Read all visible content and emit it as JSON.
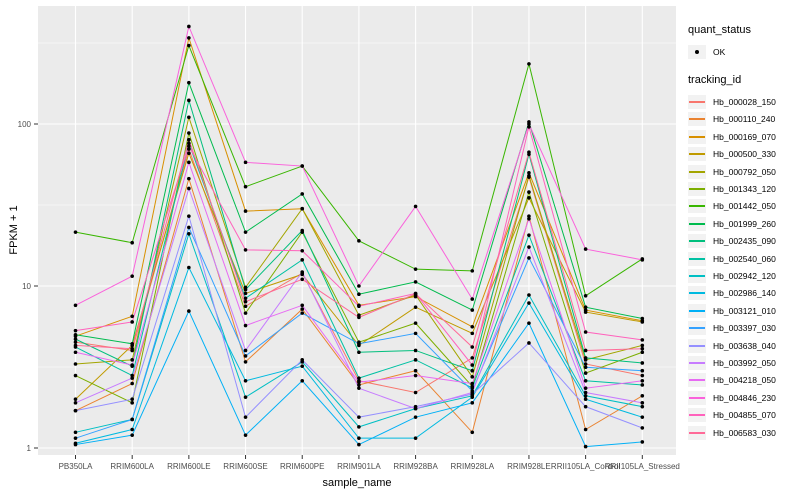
{
  "style": {
    "background": "#FFFFFF",
    "panel_fill": "#EBEBEB",
    "grid_color": "#FFFFFF",
    "legend_key_fill": "#F2F2F2",
    "tick_label_color": "#4D4D4D",
    "tick_mark_color": "#333333",
    "point_color": "#000000"
  },
  "legend": {
    "quant_status_title": "quant_status",
    "quant_status_items": [
      {
        "label": "OK",
        "marker": "point"
      }
    ],
    "tracking_id_title": "tracking_id"
  },
  "chart_data": {
    "type": "line",
    "title": "",
    "xlabel": "sample_name",
    "ylabel": "FPKM + 1",
    "y_scale": "log10",
    "y_ticks": [
      1,
      10,
      100
    ],
    "y_minor_ticks": [
      3.1623,
      31.623,
      316.23
    ],
    "ylim_log": [
      0.957,
      2.73
    ],
    "grid": "on",
    "legend_position": "right",
    "marker": "black-point",
    "categories": [
      "PB350LA",
      "RRIM600LA",
      "RRIM600LE",
      "RRIM600SE",
      "RRIM600PE",
      "RRIM901LA",
      "RRIM928BA",
      "RRIM928LA",
      "RRIM928LE",
      "RRII105LA_Control",
      "RRII105LA_Stressed"
    ],
    "series": [
      {
        "name": "Hb_000028_150",
        "color": "#F8766D",
        "values": [
          4.5,
          4.0,
          70,
          7.5,
          12.0,
          2.6,
          2.2,
          3.6,
          47,
          3.3,
          2.8
        ]
      },
      {
        "name": "Hb_000110_240",
        "color": "#EA8331",
        "values": [
          1.7,
          2.5,
          46,
          3.4,
          7.2,
          2.45,
          3.0,
          1.25,
          27,
          1.3,
          2.1
        ]
      },
      {
        "name": "Hb_000169_070",
        "color": "#D89000",
        "values": [
          4.9,
          6.5,
          340,
          29,
          30,
          7.6,
          8.6,
          5.6,
          50,
          7.1,
          6.1
        ]
      },
      {
        "name": "Hb_000500_330",
        "color": "#C09B00",
        "values": [
          2.0,
          4.3,
          66,
          9.0,
          11.8,
          4.3,
          7.4,
          5.1,
          35,
          6.9,
          6.0
        ]
      },
      {
        "name": "Hb_000792_050",
        "color": "#A3A500",
        "values": [
          3.3,
          3.5,
          110,
          9.8,
          30,
          6.6,
          8.8,
          2.75,
          48,
          3.5,
          4.3
        ]
      },
      {
        "name": "Hb_001343_120",
        "color": "#7CAE00",
        "values": [
          2.8,
          1.9,
          88,
          6.8,
          21.5,
          4.5,
          5.9,
          2.4,
          38,
          2.9,
          3.9
        ]
      },
      {
        "name": "Hb_001442_050",
        "color": "#39B600",
        "values": [
          21.5,
          18.5,
          305,
          41,
          55,
          19,
          12.7,
          12.4,
          235,
          8.7,
          14.7
        ]
      },
      {
        "name": "Hb_001999_260",
        "color": "#00BB4E",
        "values": [
          5.0,
          4.4,
          180,
          21.5,
          37,
          8.9,
          10.6,
          7.1,
          103,
          7.4,
          6.3
        ]
      },
      {
        "name": "Hb_002435_090",
        "color": "#00BF7D",
        "values": [
          4.7,
          3.2,
          140,
          9.5,
          22,
          3.9,
          4.0,
          3.0,
          65,
          3.6,
          3.35
        ]
      },
      {
        "name": "Hb_002540_060",
        "color": "#00C1A3",
        "values": [
          4.2,
          2.8,
          76,
          8.4,
          14.5,
          2.7,
          3.5,
          2.35,
          20.6,
          2.6,
          2.45
        ]
      },
      {
        "name": "Hb_002942_120",
        "color": "#00BFC4",
        "values": [
          1.25,
          1.5,
          21,
          2.06,
          3.4,
          1.35,
          1.75,
          2.1,
          8.8,
          2.1,
          1.8
        ]
      },
      {
        "name": "Hb_002986_140",
        "color": "#00BAE0",
        "values": [
          1.07,
          1.3,
          13,
          2.6,
          3.2,
          1.15,
          1.15,
          2.06,
          7.85,
          2.0,
          1.55
        ]
      },
      {
        "name": "Hb_003121_010",
        "color": "#00B0F6",
        "values": [
          1.05,
          1.2,
          7.0,
          1.2,
          2.6,
          1.05,
          1.55,
          1.9,
          5.9,
          1.02,
          1.09
        ]
      },
      {
        "name": "Hb_003397_030",
        "color": "#35A2FF",
        "values": [
          1.15,
          1.5,
          23,
          3.7,
          6.8,
          4.4,
          5.1,
          2.25,
          14.9,
          3.15,
          3.0
        ]
      },
      {
        "name": "Hb_003638_040",
        "color": "#9590FF",
        "values": [
          1.7,
          2.0,
          27,
          1.55,
          3.5,
          1.55,
          1.8,
          2.15,
          4.45,
          1.8,
          1.33
        ]
      },
      {
        "name": "Hb_003992_050",
        "color": "#C77CFF",
        "values": [
          1.9,
          2.7,
          40,
          4.0,
          12.2,
          2.34,
          1.75,
          2.2,
          17.4,
          2.2,
          1.9
        ]
      },
      {
        "name": "Hb_004218_050",
        "color": "#E76BF3",
        "values": [
          3.9,
          3.25,
          58,
          5.7,
          7.6,
          2.55,
          2.8,
          2.5,
          26,
          2.34,
          2.6
        ]
      },
      {
        "name": "Hb_004846_230",
        "color": "#FA62DB",
        "values": [
          7.6,
          11.5,
          400,
          58,
          55,
          10,
          31,
          8.3,
          100,
          16.9,
          14.5
        ]
      },
      {
        "name": "Hb_004855_070",
        "color": "#FF62BC",
        "values": [
          5.3,
          6.0,
          73,
          16.7,
          16.5,
          7.5,
          9.0,
          3.25,
          96,
          5.2,
          4.65
        ]
      },
      {
        "name": "Hb_006583_030",
        "color": "#FF6A98",
        "values": [
          4.3,
          4.1,
          80,
          8.0,
          11.0,
          6.4,
          8.95,
          4.2,
          67,
          4.0,
          4.1
        ]
      }
    ]
  }
}
